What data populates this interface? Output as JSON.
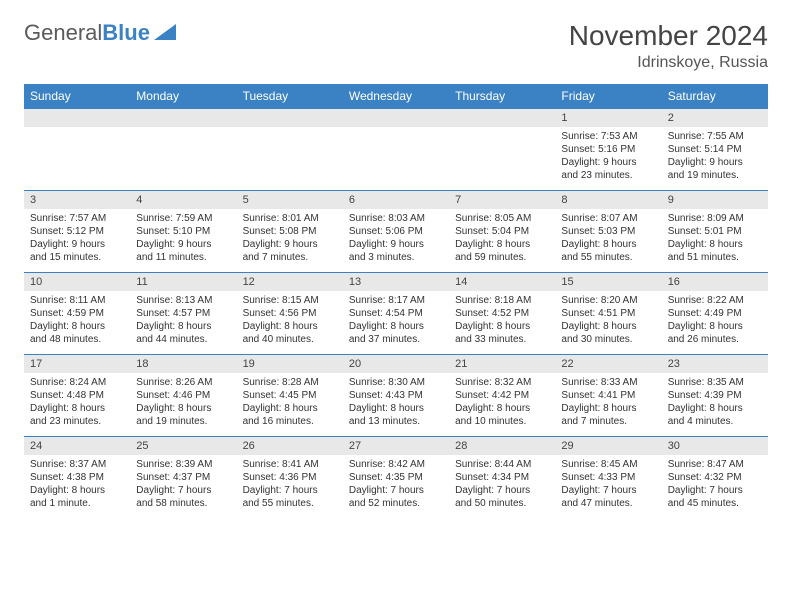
{
  "logo": {
    "general": "General",
    "blue": "Blue"
  },
  "title": "November 2024",
  "location": "Idrinskoye, Russia",
  "colors": {
    "header_bg": "#3b82c4",
    "header_text": "#ffffff",
    "daynum_bg": "#e8e8e8",
    "border": "#3b82c4",
    "body_bg": "#ffffff",
    "text": "#333333"
  },
  "typography": {
    "title_fontsize": 28,
    "location_fontsize": 16,
    "weekday_fontsize": 12,
    "daynum_fontsize": 11,
    "detail_fontsize": 10
  },
  "weekdays": [
    "Sunday",
    "Monday",
    "Tuesday",
    "Wednesday",
    "Thursday",
    "Friday",
    "Saturday"
  ],
  "weeks": [
    {
      "nums": [
        "",
        "",
        "",
        "",
        "",
        "1",
        "2"
      ],
      "details": [
        "",
        "",
        "",
        "",
        "",
        "Sunrise: 7:53 AM\nSunset: 5:16 PM\nDaylight: 9 hours and 23 minutes.",
        "Sunrise: 7:55 AM\nSunset: 5:14 PM\nDaylight: 9 hours and 19 minutes."
      ]
    },
    {
      "nums": [
        "3",
        "4",
        "5",
        "6",
        "7",
        "8",
        "9"
      ],
      "details": [
        "Sunrise: 7:57 AM\nSunset: 5:12 PM\nDaylight: 9 hours and 15 minutes.",
        "Sunrise: 7:59 AM\nSunset: 5:10 PM\nDaylight: 9 hours and 11 minutes.",
        "Sunrise: 8:01 AM\nSunset: 5:08 PM\nDaylight: 9 hours and 7 minutes.",
        "Sunrise: 8:03 AM\nSunset: 5:06 PM\nDaylight: 9 hours and 3 minutes.",
        "Sunrise: 8:05 AM\nSunset: 5:04 PM\nDaylight: 8 hours and 59 minutes.",
        "Sunrise: 8:07 AM\nSunset: 5:03 PM\nDaylight: 8 hours and 55 minutes.",
        "Sunrise: 8:09 AM\nSunset: 5:01 PM\nDaylight: 8 hours and 51 minutes."
      ]
    },
    {
      "nums": [
        "10",
        "11",
        "12",
        "13",
        "14",
        "15",
        "16"
      ],
      "details": [
        "Sunrise: 8:11 AM\nSunset: 4:59 PM\nDaylight: 8 hours and 48 minutes.",
        "Sunrise: 8:13 AM\nSunset: 4:57 PM\nDaylight: 8 hours and 44 minutes.",
        "Sunrise: 8:15 AM\nSunset: 4:56 PM\nDaylight: 8 hours and 40 minutes.",
        "Sunrise: 8:17 AM\nSunset: 4:54 PM\nDaylight: 8 hours and 37 minutes.",
        "Sunrise: 8:18 AM\nSunset: 4:52 PM\nDaylight: 8 hours and 33 minutes.",
        "Sunrise: 8:20 AM\nSunset: 4:51 PM\nDaylight: 8 hours and 30 minutes.",
        "Sunrise: 8:22 AM\nSunset: 4:49 PM\nDaylight: 8 hours and 26 minutes."
      ]
    },
    {
      "nums": [
        "17",
        "18",
        "19",
        "20",
        "21",
        "22",
        "23"
      ],
      "details": [
        "Sunrise: 8:24 AM\nSunset: 4:48 PM\nDaylight: 8 hours and 23 minutes.",
        "Sunrise: 8:26 AM\nSunset: 4:46 PM\nDaylight: 8 hours and 19 minutes.",
        "Sunrise: 8:28 AM\nSunset: 4:45 PM\nDaylight: 8 hours and 16 minutes.",
        "Sunrise: 8:30 AM\nSunset: 4:43 PM\nDaylight: 8 hours and 13 minutes.",
        "Sunrise: 8:32 AM\nSunset: 4:42 PM\nDaylight: 8 hours and 10 minutes.",
        "Sunrise: 8:33 AM\nSunset: 4:41 PM\nDaylight: 8 hours and 7 minutes.",
        "Sunrise: 8:35 AM\nSunset: 4:39 PM\nDaylight: 8 hours and 4 minutes."
      ]
    },
    {
      "nums": [
        "24",
        "25",
        "26",
        "27",
        "28",
        "29",
        "30"
      ],
      "details": [
        "Sunrise: 8:37 AM\nSunset: 4:38 PM\nDaylight: 8 hours and 1 minute.",
        "Sunrise: 8:39 AM\nSunset: 4:37 PM\nDaylight: 7 hours and 58 minutes.",
        "Sunrise: 8:41 AM\nSunset: 4:36 PM\nDaylight: 7 hours and 55 minutes.",
        "Sunrise: 8:42 AM\nSunset: 4:35 PM\nDaylight: 7 hours and 52 minutes.",
        "Sunrise: 8:44 AM\nSunset: 4:34 PM\nDaylight: 7 hours and 50 minutes.",
        "Sunrise: 8:45 AM\nSunset: 4:33 PM\nDaylight: 7 hours and 47 minutes.",
        "Sunrise: 8:47 AM\nSunset: 4:32 PM\nDaylight: 7 hours and 45 minutes."
      ]
    }
  ]
}
